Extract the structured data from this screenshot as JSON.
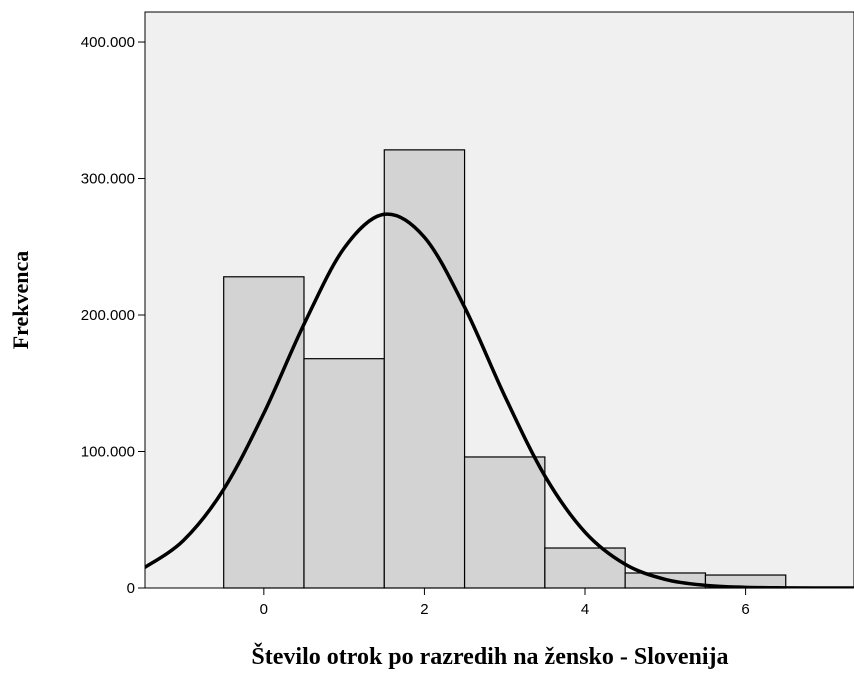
{
  "chart_data": {
    "type": "histogram",
    "x_label": "Število otrok po razredih na žensko - Slovenija",
    "y_label": "Frekvenca",
    "bins": [
      -0.5,
      0.5,
      1.5,
      2.5,
      3.5,
      4.5,
      5.5,
      6.5
    ],
    "values": [
      228000,
      168000,
      321000,
      96000,
      29300,
      11000,
      9500
    ],
    "color": "#d3d3d3",
    "curve": {
      "color": "#000000",
      "x": [
        -1.5,
        -1,
        -0.5,
        0,
        0.5,
        1,
        1.5,
        2,
        2.5,
        3,
        3.5,
        4,
        4.5,
        5,
        5.5,
        6,
        6.5,
        7,
        7.5
      ],
      "values": [
        14400,
        34900,
        72300,
        128000,
        193200,
        249000,
        273800,
        257000,
        205800,
        140700,
        82100,
        40900,
        17400,
        6300,
        1950,
        500,
        116,
        22,
        4
      ]
    },
    "xlim": [
      -1.48,
      7.35
    ],
    "ylim": [
      0,
      422000
    ],
    "xticks": [
      0,
      2,
      4,
      6
    ],
    "yticks": [
      0,
      {
        "value": 100000,
        "label": "100.000"
      },
      {
        "value": 200000,
        "label": "200.000"
      },
      {
        "value": 300000,
        "label": "300.000"
      },
      {
        "value": 400000,
        "label": "400.000"
      }
    ]
  }
}
